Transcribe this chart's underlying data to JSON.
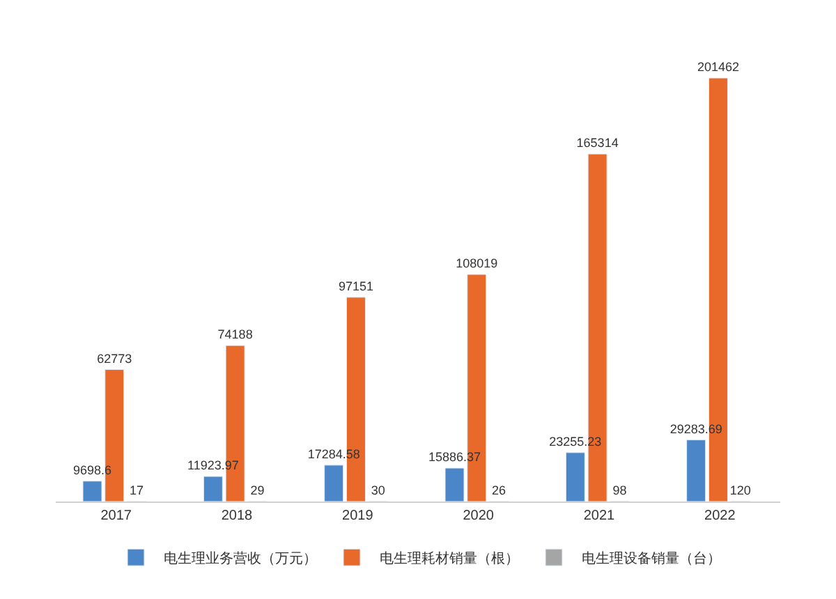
{
  "chart_data": {
    "type": "bar",
    "categories": [
      "2017",
      "2018",
      "2019",
      "2020",
      "2021",
      "2022"
    ],
    "series": [
      {
        "name": "电生理业务营收（万元）",
        "color": "#4a86c8",
        "values": [
          9698.6,
          11923.97,
          17284.58,
          15886.37,
          23255.23,
          29283.69
        ]
      },
      {
        "name": "电生理耗材销量（根）",
        "color": "#e8692a",
        "values": [
          62773,
          74188,
          97151,
          108019,
          165314,
          201462
        ]
      },
      {
        "name": "电生理设备销量（台）",
        "color": "#a5a5a5",
        "values": [
          17,
          29,
          30,
          26,
          98,
          120
        ]
      }
    ],
    "data_labels": true,
    "legend": "bottom",
    "tick_labels": "x"
  }
}
